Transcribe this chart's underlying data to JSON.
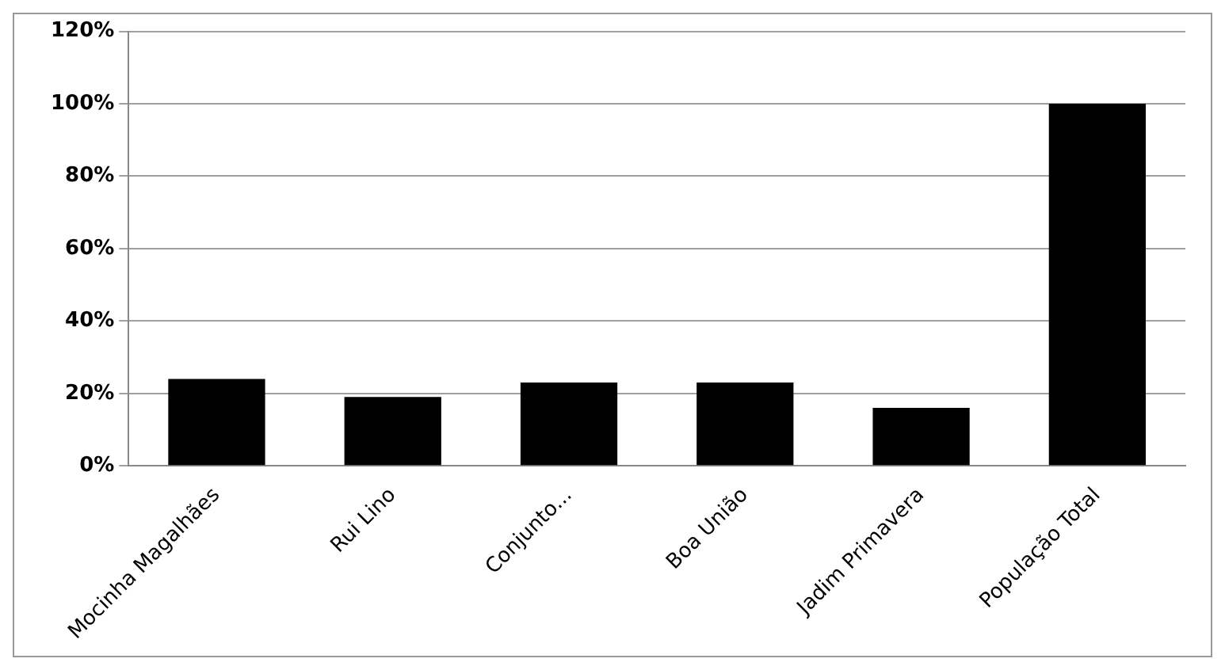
{
  "chart_data": {
    "type": "bar",
    "categories": [
      "Mocinha Magalhães",
      "Rui Lino",
      "Conjunto...",
      "Boa União",
      "Jadim Primavera",
      "População Total"
    ],
    "values": [
      24,
      19,
      23,
      23,
      16,
      100
    ],
    "color": "#000000",
    "ylim": [
      0,
      120
    ],
    "yticks": [
      {
        "value": 0,
        "label": "0%"
      },
      {
        "value": 20,
        "label": "20%"
      },
      {
        "value": 40,
        "label": "40%"
      },
      {
        "value": 60,
        "label": "60%"
      },
      {
        "value": 80,
        "label": "80%"
      },
      {
        "value": 100,
        "label": "100%"
      },
      {
        "value": 120,
        "label": "120%"
      }
    ],
    "grid": "y",
    "legend": false
  }
}
